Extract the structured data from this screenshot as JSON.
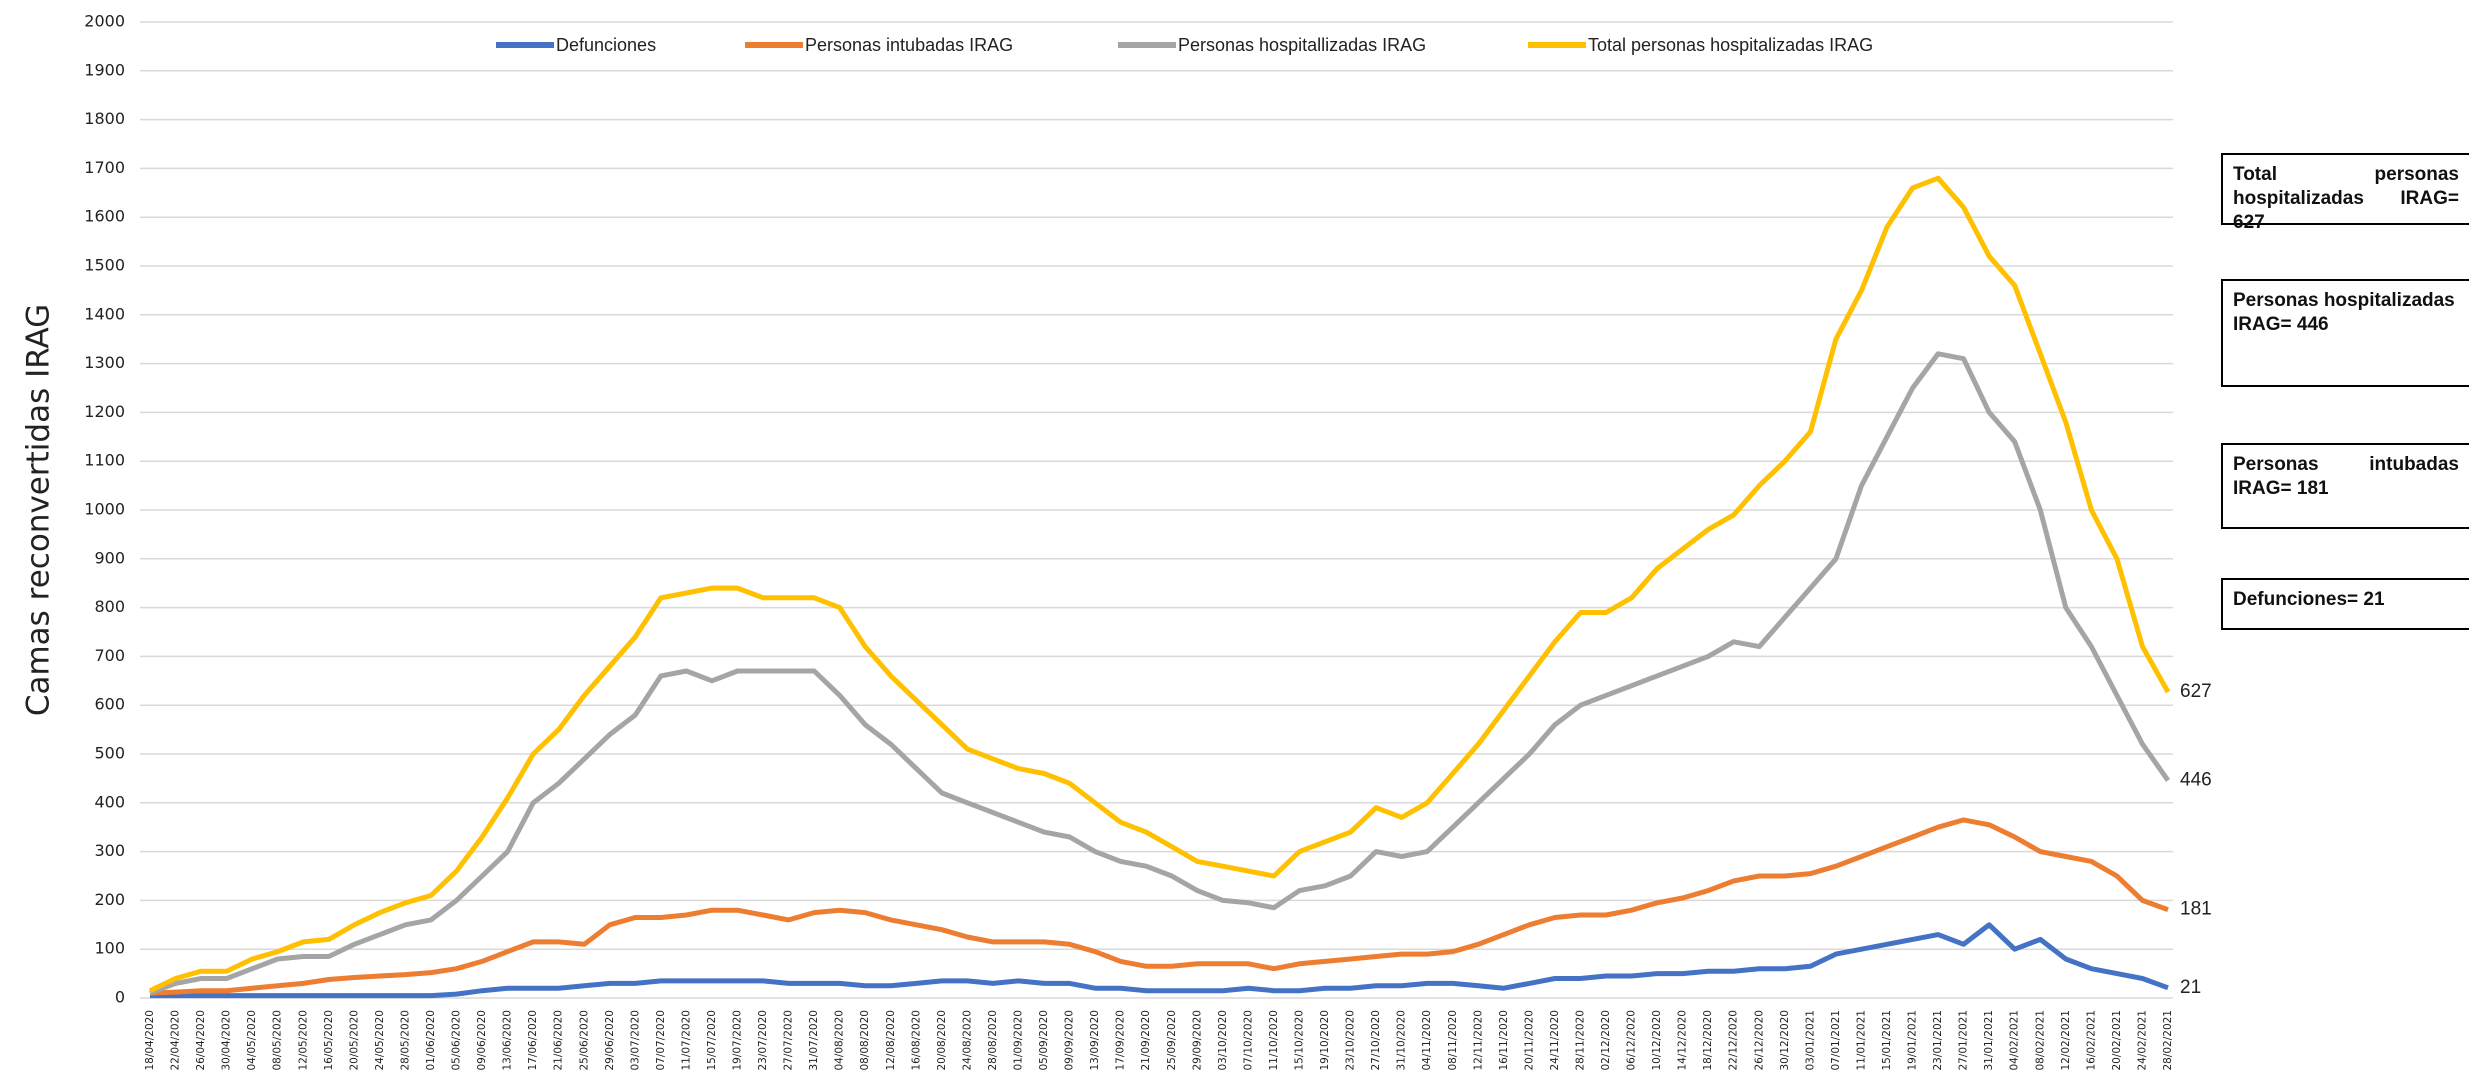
{
  "chart_data": {
    "type": "line",
    "ylabel": "Camas reconvertidas IRAG",
    "categories": [
      "18/04/2020",
      "22/04/2020",
      "26/04/2020",
      "30/04/2020",
      "04/05/2020",
      "08/05/2020",
      "12/05/2020",
      "16/05/2020",
      "20/05/2020",
      "24/05/2020",
      "28/05/2020",
      "01/06/2020",
      "05/06/2020",
      "09/06/2020",
      "13/06/2020",
      "17/06/2020",
      "21/06/2020",
      "25/06/2020",
      "29/06/2020",
      "03/07/2020",
      "07/07/2020",
      "11/07/2020",
      "15/07/2020",
      "19/07/2020",
      "23/07/2020",
      "27/07/2020",
      "31/07/2020",
      "04/08/2020",
      "08/08/2020",
      "12/08/2020",
      "16/08/2020",
      "20/08/2020",
      "24/08/2020",
      "28/08/2020",
      "01/09/2020",
      "05/09/2020",
      "09/09/2020",
      "13/09/2020",
      "17/09/2020",
      "21/09/2020",
      "25/09/2020",
      "29/09/2020",
      "03/10/2020",
      "07/10/2020",
      "11/10/2020",
      "15/10/2020",
      "19/10/2020",
      "23/10/2020",
      "27/10/2020",
      "31/10/2020",
      "04/11/2020",
      "08/11/2020",
      "12/11/2020",
      "16/11/2020",
      "20/11/2020",
      "24/11/2020",
      "28/11/2020",
      "02/12/2020",
      "06/12/2020",
      "10/12/2020",
      "14/12/2020",
      "18/12/2020",
      "22/12/2020",
      "26/12/2020",
      "30/12/2020",
      "03/01/2021",
      "07/01/2021",
      "11/01/2021",
      "15/01/2021",
      "19/01/2021",
      "23/01/2021",
      "27/01/2021",
      "31/01/2021",
      "04/02/2021",
      "08/02/2021",
      "12/02/2021",
      "16/02/2021",
      "20/02/2021",
      "24/02/2021",
      "28/02/2021"
    ],
    "series": [
      {
        "name": "Defunciones",
        "color": "#4472c4",
        "values": [
          5,
          5,
          5,
          5,
          5,
          5,
          5,
          5,
          5,
          5,
          5,
          5,
          8,
          15,
          20,
          20,
          20,
          25,
          30,
          30,
          35,
          35,
          35,
          35,
          35,
          30,
          30,
          30,
          25,
          25,
          30,
          35,
          35,
          30,
          35,
          30,
          30,
          20,
          20,
          15,
          15,
          15,
          15,
          20,
          15,
          15,
          20,
          20,
          25,
          25,
          30,
          30,
          25,
          20,
          30,
          40,
          40,
          45,
          45,
          50,
          50,
          55,
          55,
          60,
          60,
          65,
          90,
          100,
          110,
          120,
          130,
          110,
          150,
          100,
          120,
          80,
          60,
          50,
          40,
          21
        ]
      },
      {
        "name": "Personas intubadas IRAG",
        "color": "#ed7d31",
        "values": [
          10,
          12,
          15,
          15,
          20,
          25,
          30,
          38,
          42,
          45,
          48,
          52,
          60,
          75,
          95,
          115,
          115,
          110,
          150,
          165,
          165,
          170,
          180,
          180,
          170,
          160,
          175,
          180,
          175,
          160,
          150,
          140,
          125,
          115,
          115,
          115,
          110,
          95,
          75,
          65,
          65,
          70,
          70,
          70,
          60,
          70,
          75,
          80,
          85,
          90,
          90,
          95,
          110,
          130,
          150,
          165,
          170,
          170,
          180,
          195,
          205,
          220,
          240,
          250,
          250,
          255,
          270,
          290,
          310,
          330,
          350,
          365,
          355,
          330,
          300,
          290,
          280,
          250,
          200,
          181
        ]
      },
      {
        "name": "Personas hospitallizadas IRAG",
        "color": "#a5a5a5",
        "values": [
          10,
          30,
          40,
          40,
          60,
          80,
          85,
          85,
          110,
          130,
          150,
          160,
          200,
          250,
          300,
          400,
          440,
          490,
          540,
          580,
          660,
          670,
          650,
          670,
          670,
          670,
          670,
          620,
          560,
          520,
          470,
          420,
          400,
          380,
          360,
          340,
          330,
          300,
          280,
          270,
          250,
          220,
          200,
          195,
          185,
          220,
          230,
          250,
          300,
          290,
          300,
          350,
          400,
          450,
          500,
          560,
          600,
          620,
          640,
          660,
          680,
          700,
          730,
          720,
          780,
          840,
          900,
          1050,
          1150,
          1250,
          1320,
          1310,
          1200,
          1140,
          1000,
          800,
          720,
          620,
          520,
          446
        ]
      },
      {
        "name": "Total personas hospitalizadas IRAG",
        "color": "#ffc000",
        "values": [
          15,
          40,
          55,
          55,
          80,
          95,
          115,
          120,
          150,
          175,
          195,
          210,
          260,
          330,
          410,
          500,
          550,
          620,
          680,
          740,
          820,
          830,
          840,
          840,
          820,
          820,
          820,
          800,
          720,
          660,
          610,
          560,
          510,
          490,
          470,
          460,
          440,
          400,
          360,
          340,
          310,
          280,
          270,
          260,
          250,
          300,
          320,
          340,
          390,
          370,
          400,
          460,
          520,
          590,
          660,
          730,
          790,
          790,
          820,
          880,
          920,
          960,
          990,
          1050,
          1100,
          1160,
          1350,
          1450,
          1580,
          1660,
          1680,
          1620,
          1520,
          1460,
          1320,
          1180,
          1000,
          900,
          720,
          627
        ]
      }
    ],
    "ylim": [
      0,
      2000
    ],
    "yticks": [
      0,
      100,
      200,
      300,
      400,
      500,
      600,
      700,
      800,
      900,
      1000,
      1100,
      1200,
      1300,
      1400,
      1500,
      1600,
      1700,
      1800,
      1900,
      2000
    ],
    "grid": true,
    "legend": "top",
    "annotations": [
      "Total personas hospitalizadas IRAG= 627",
      "Personas hospitalizadas IRAG= 446",
      "Personas intubadas IRAG= 181",
      "Defunciones= 21"
    ]
  }
}
